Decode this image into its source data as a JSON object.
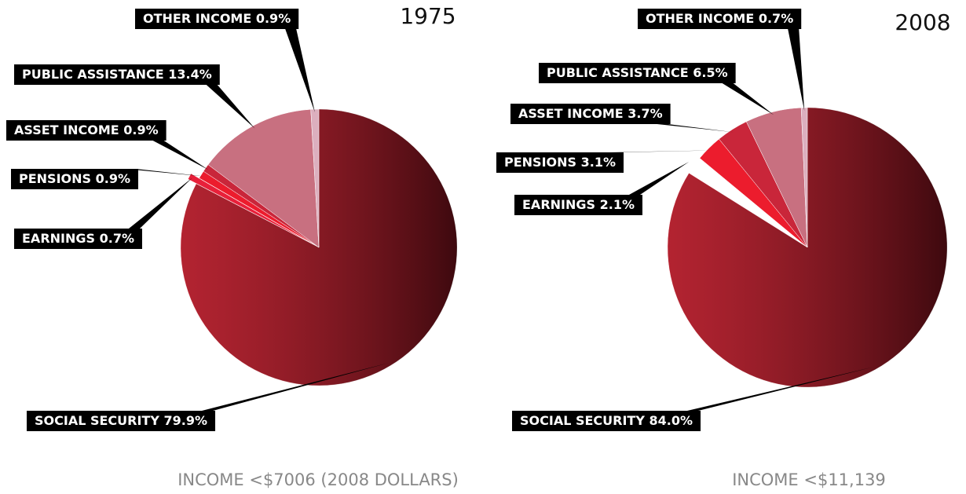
{
  "chart_data": [
    {
      "type": "pie",
      "title": "1975",
      "subtitle": "INCOME <$7006 (2008 DOLLARS)",
      "categories": [
        "SOCIAL SECURITY",
        "EARNINGS",
        "PENSIONS",
        "ASSET INCOME",
        "PUBLIC ASSISTANCE",
        "OTHER INCOME"
      ],
      "values": [
        79.9,
        0.7,
        0.9,
        0.9,
        13.4,
        0.9
      ],
      "value_labels": [
        "79.9%",
        "0.7%",
        "0.9%",
        "0.9%",
        "13.4%",
        "0.9%"
      ],
      "colors": [
        "#8a1420",
        "#e8203a",
        "#ec1c2d",
        "#c9263a",
        "#c87080",
        "#dcafbe"
      ]
    },
    {
      "type": "pie",
      "title": "2008",
      "subtitle": "INCOME <$11,139",
      "categories": [
        "SOCIAL SECURITY",
        "EARNINGS",
        "PENSIONS",
        "ASSET INCOME",
        "PUBLIC ASSISTANCE",
        "OTHER INCOME"
      ],
      "values": [
        84.0,
        2.1,
        3.1,
        3.7,
        6.5,
        0.7
      ],
      "value_labels": [
        "84.0%",
        "2.1%",
        "3.1%",
        "3.7%",
        "6.5%",
        "0.7%"
      ],
      "colors": [
        "#8a1420",
        "#ffffff",
        "#ec1c2d",
        "#c9263a",
        "#c87080",
        "#dcafbe"
      ]
    }
  ]
}
